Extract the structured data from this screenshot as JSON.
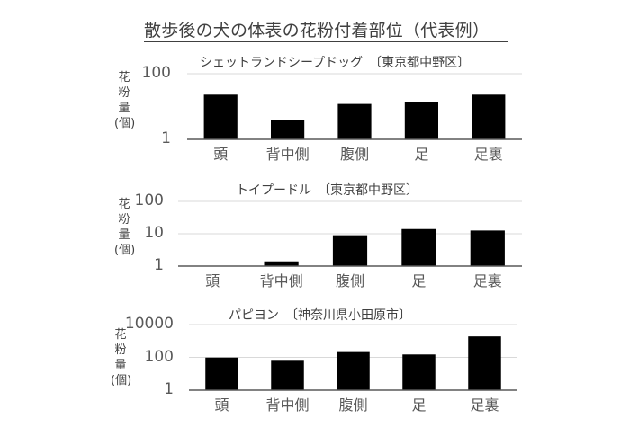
{
  "title": "散歩後の犬の体表の花粉付着部位（代表例）",
  "ylabel_chars": [
    "花",
    "粉",
    "量",
    "(個)"
  ],
  "chart_data": [
    {
      "type": "bar",
      "title": "シェットランドシープドッグ　〔東京都中野区〕",
      "xlabel": "",
      "ylabel": "花粉量(個)",
      "yscale": "log",
      "ylim": [
        1,
        100
      ],
      "yticks": [
        1,
        100
      ],
      "ytick_labels": [
        "1",
        "100"
      ],
      "gridlines": [
        100
      ],
      "categories": [
        "頭",
        "背中側",
        "腹側",
        "足",
        "足裏"
      ],
      "values": [
        23,
        4,
        12,
        14,
        23
      ],
      "bar_color": "#000000",
      "layout": {
        "top": 55,
        "plot_left": 208,
        "plot_right": 580,
        "plot_top": 82,
        "plot_bottom": 155,
        "title_x": 222,
        "title_y": 62,
        "ylabel_x": 127,
        "ylabel_y": 78,
        "tick_right": 190
      }
    },
    {
      "type": "bar",
      "title": "トイプードル　〔東京都中野区〕",
      "xlabel": "",
      "ylabel": "花粉量(個)",
      "yscale": "log",
      "ylim": [
        1,
        100
      ],
      "yticks": [
        1,
        10,
        100
      ],
      "ytick_labels": [
        "1",
        "10",
        "100"
      ],
      "gridlines": [
        10,
        100
      ],
      "categories": [
        "頭",
        "背中側",
        "腹側",
        "足",
        "足裏"
      ],
      "values": [
        0,
        1.4,
        9,
        14,
        12.6
      ],
      "bar_color": "#000000",
      "layout": {
        "top": 195,
        "plot_left": 198,
        "plot_right": 580,
        "plot_top": 224,
        "plot_bottom": 296,
        "title_x": 262,
        "title_y": 204,
        "ylabel_x": 127,
        "ylabel_y": 219,
        "tick_right": 182
      }
    },
    {
      "type": "bar",
      "title": "パピヨン　〔神奈川県小田原市〕",
      "xlabel": "",
      "ylabel": "花粉量(個)",
      "yscale": "log",
      "ylim": [
        1,
        10000
      ],
      "yticks": [
        1,
        100,
        10000
      ],
      "ytick_labels": [
        "1",
        "100",
        "10000"
      ],
      "gridlines": [
        100,
        10000
      ],
      "categories": [
        "頭",
        "背中側",
        "腹側",
        "足",
        "足裏"
      ],
      "values": [
        97,
        62,
        210,
        150,
        1900
      ],
      "bar_color": "#000000",
      "layout": {
        "top": 335,
        "plot_left": 210,
        "plot_right": 575,
        "plot_top": 361,
        "plot_bottom": 434,
        "title_x": 254,
        "title_y": 343,
        "ylabel_x": 123,
        "ylabel_y": 364,
        "tick_right": 193
      }
    }
  ]
}
